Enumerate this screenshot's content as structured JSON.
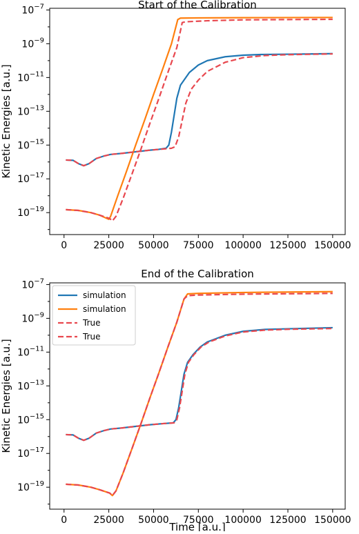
{
  "chart_data": [
    {
      "type": "line",
      "title": "Start of the Calibration",
      "xlabel": "",
      "ylabel": "Kinetic Energies [a.u.]",
      "xlim": [
        -8000,
        157000
      ],
      "ylim_log10": [
        -20.3,
        -6.9
      ],
      "y_scale": "log",
      "x_ticks": [
        0,
        25000,
        50000,
        75000,
        100000,
        125000,
        150000
      ],
      "x_tick_labels": [
        "0",
        "25000",
        "50000",
        "75000",
        "100000",
        "125000",
        "150000"
      ],
      "y_ticks_log10": [
        -19,
        -17,
        -15,
        -13,
        -11,
        -9,
        -7
      ],
      "y_tick_labels": [
        {
          "base": "10",
          "exp": "−19"
        },
        {
          "base": "10",
          "exp": "−17"
        },
        {
          "base": "10",
          "exp": "−15"
        },
        {
          "base": "10",
          "exp": "−13"
        },
        {
          "base": "10",
          "exp": "−11"
        },
        {
          "base": "10",
          "exp": "−9"
        },
        {
          "base": "10",
          "exp": "−7"
        }
      ],
      "grid": false,
      "legend": null,
      "series": [
        {
          "color": "#1f77b4",
          "style": "solid",
          "points": [
            [
              1000,
              1.3e-16
            ],
            [
              5000,
              1.25e-16
            ],
            [
              8000,
              8e-17
            ],
            [
              11000,
              6e-17
            ],
            [
              14000,
              8e-17
            ],
            [
              18000,
              1.6e-16
            ],
            [
              22000,
              2.2e-16
            ],
            [
              26000,
              2.8e-16
            ],
            [
              32000,
              3.2e-16
            ],
            [
              40000,
              4e-16
            ],
            [
              48000,
              5e-16
            ],
            [
              53000,
              5.6e-16
            ],
            [
              57000,
              6.5e-16
            ],
            [
              58500,
              1e-15
            ],
            [
              60000,
              6e-15
            ],
            [
              61500,
              6e-14
            ],
            [
              63000,
              6e-13
            ],
            [
              65000,
              3.5e-12
            ],
            [
              70000,
              2e-11
            ],
            [
              75000,
              5.5e-11
            ],
            [
              80000,
              1e-10
            ],
            [
              90000,
              1.7e-10
            ],
            [
              100000,
              2.1e-10
            ],
            [
              110000,
              2.3e-10
            ],
            [
              125000,
              2.4e-10
            ],
            [
              140000,
              2.5e-10
            ],
            [
              150000,
              2.6e-10
            ]
          ]
        },
        {
          "color": "#ff7f0e",
          "style": "solid",
          "points": [
            [
              1000,
              1.5e-19
            ],
            [
              8000,
              1.35e-19
            ],
            [
              15000,
              1e-19
            ],
            [
              20000,
              7e-20
            ],
            [
              25000,
              4e-20
            ],
            [
              26000,
              6e-20
            ],
            [
              30000,
              1e-18
            ],
            [
              35000,
              3e-17
            ],
            [
              40000,
              1e-15
            ],
            [
              45000,
              3e-14
            ],
            [
              50000,
              1e-12
            ],
            [
              55000,
              3e-11
            ],
            [
              60000,
              1e-09
            ],
            [
              63500,
              2.7e-08
            ],
            [
              65000,
              3.3e-08
            ],
            [
              75000,
              3.4e-08
            ],
            [
              100000,
              3.5e-08
            ],
            [
              150000,
              3.6e-08
            ]
          ]
        },
        {
          "color": "#e8474e",
          "style": "dashed",
          "points": [
            [
              1000,
              1.3e-16
            ],
            [
              5000,
              1.25e-16
            ],
            [
              8000,
              8e-17
            ],
            [
              11000,
              6e-17
            ],
            [
              14000,
              8e-17
            ],
            [
              18000,
              1.6e-16
            ],
            [
              22000,
              2.2e-16
            ],
            [
              26000,
              2.8e-16
            ],
            [
              32000,
              3.2e-16
            ],
            [
              40000,
              4e-16
            ],
            [
              48000,
              5e-16
            ],
            [
              55000,
              5.8e-16
            ],
            [
              60000,
              6.5e-16
            ],
            [
              62000,
              8e-16
            ],
            [
              64000,
              3e-15
            ],
            [
              66000,
              3e-14
            ],
            [
              68000,
              3e-13
            ],
            [
              71000,
              2e-12
            ],
            [
              75000,
              7e-12
            ],
            [
              80000,
              2.3e-11
            ],
            [
              90000,
              8e-11
            ],
            [
              100000,
              1.5e-10
            ],
            [
              112000,
              2e-10
            ],
            [
              125000,
              2.25e-10
            ],
            [
              140000,
              2.4e-10
            ],
            [
              150000,
              2.5e-10
            ]
          ]
        },
        {
          "color": "#e8474e",
          "style": "dashed",
          "points": [
            [
              1000,
              1.5e-19
            ],
            [
              8000,
              1.35e-19
            ],
            [
              15000,
              1e-19
            ],
            [
              20000,
              7e-20
            ],
            [
              25500,
              4.5e-20
            ],
            [
              27000,
              3.2e-20
            ],
            [
              29000,
              6e-20
            ],
            [
              33000,
              7e-19
            ],
            [
              38000,
              2e-17
            ],
            [
              43000,
              6e-16
            ],
            [
              48000,
              2e-14
            ],
            [
              53000,
              6e-13
            ],
            [
              58000,
              2e-11
            ],
            [
              63000,
              6e-10
            ],
            [
              66000,
              1.8e-08
            ],
            [
              68000,
              2e-08
            ],
            [
              80000,
              2.3e-08
            ],
            [
              100000,
              2.6e-08
            ],
            [
              150000,
              2.8e-08
            ]
          ]
        }
      ]
    },
    {
      "type": "line",
      "title": "End of the Calibration",
      "xlabel": "Time [a.u.]",
      "ylabel": "Kinetic Energies [a.u.]",
      "xlim": [
        -8000,
        157000
      ],
      "ylim_log10": [
        -20.3,
        -6.9
      ],
      "y_scale": "log",
      "x_ticks": [
        0,
        25000,
        50000,
        75000,
        100000,
        125000,
        150000
      ],
      "x_tick_labels": [
        "0",
        "25000",
        "50000",
        "75000",
        "100000",
        "125000",
        "150000"
      ],
      "y_ticks_log10": [
        -19,
        -17,
        -15,
        -13,
        -11,
        -9,
        -7
      ],
      "y_tick_labels": [
        {
          "base": "10",
          "exp": "−19"
        },
        {
          "base": "10",
          "exp": "−17"
        },
        {
          "base": "10",
          "exp": "−15"
        },
        {
          "base": "10",
          "exp": "−13"
        },
        {
          "base": "10",
          "exp": "−11"
        },
        {
          "base": "10",
          "exp": "−9"
        },
        {
          "base": "10",
          "exp": "−7"
        }
      ],
      "grid": false,
      "legend": "top-left",
      "series": [
        {
          "name": "simulation",
          "color": "#1f77b4",
          "style": "solid",
          "points": [
            [
              1000,
              1.3e-16
            ],
            [
              5000,
              1.25e-16
            ],
            [
              8000,
              8e-17
            ],
            [
              11000,
              6e-17
            ],
            [
              14000,
              8e-17
            ],
            [
              18000,
              1.6e-16
            ],
            [
              22000,
              2.2e-16
            ],
            [
              26000,
              2.8e-16
            ],
            [
              32000,
              3.2e-16
            ],
            [
              40000,
              4e-16
            ],
            [
              48000,
              5e-16
            ],
            [
              55000,
              5.8e-16
            ],
            [
              61000,
              6.5e-16
            ],
            [
              62500,
              1e-15
            ],
            [
              64000,
              5e-15
            ],
            [
              65500,
              5e-14
            ],
            [
              67000,
              5e-13
            ],
            [
              69000,
              2.5e-12
            ],
            [
              72000,
              7e-12
            ],
            [
              76000,
              2e-11
            ],
            [
              80000,
              4e-11
            ],
            [
              90000,
              1e-10
            ],
            [
              100000,
              1.7e-10
            ],
            [
              112000,
              2.2e-10
            ],
            [
              125000,
              2.4e-10
            ],
            [
              150000,
              2.8e-10
            ]
          ]
        },
        {
          "name": "simulation",
          "color": "#ff7f0e",
          "style": "solid",
          "points": [
            [
              1000,
              1.5e-19
            ],
            [
              8000,
              1.35e-19
            ],
            [
              15000,
              1e-19
            ],
            [
              20000,
              7e-20
            ],
            [
              25500,
              4.5e-20
            ],
            [
              27000,
              3.2e-20
            ],
            [
              29000,
              6e-20
            ],
            [
              33000,
              7e-19
            ],
            [
              38000,
              2e-17
            ],
            [
              43000,
              6e-16
            ],
            [
              48000,
              2e-14
            ],
            [
              53000,
              6e-13
            ],
            [
              58000,
              2e-11
            ],
            [
              63000,
              6e-10
            ],
            [
              67000,
              1.4e-08
            ],
            [
              69000,
              2.8e-08
            ],
            [
              75000,
              3e-08
            ],
            [
              100000,
              3.4e-08
            ],
            [
              150000,
              3.8e-08
            ]
          ]
        },
        {
          "name": "True",
          "color": "#e8474e",
          "style": "dashed",
          "points": [
            [
              1000,
              1.3e-16
            ],
            [
              5000,
              1.25e-16
            ],
            [
              8000,
              8e-17
            ],
            [
              11000,
              6e-17
            ],
            [
              14000,
              8e-17
            ],
            [
              18000,
              1.6e-16
            ],
            [
              22000,
              2.2e-16
            ],
            [
              26000,
              2.8e-16
            ],
            [
              32000,
              3.2e-16
            ],
            [
              40000,
              4e-16
            ],
            [
              48000,
              5e-16
            ],
            [
              55000,
              5.8e-16
            ],
            [
              61500,
              6.5e-16
            ],
            [
              63000,
              1e-15
            ],
            [
              64500,
              5e-15
            ],
            [
              66000,
              5e-14
            ],
            [
              67500,
              5e-13
            ],
            [
              69500,
              2.5e-12
            ],
            [
              72500,
              7e-12
            ],
            [
              76500,
              2e-11
            ],
            [
              81000,
              4e-11
            ],
            [
              90000,
              9e-11
            ],
            [
              100000,
              1.55e-10
            ],
            [
              112000,
              2e-10
            ],
            [
              125000,
              2.25e-10
            ],
            [
              150000,
              2.5e-10
            ]
          ]
        },
        {
          "name": "True",
          "color": "#e8474e",
          "style": "dashed",
          "points": [
            [
              1000,
              1.5e-19
            ],
            [
              8000,
              1.35e-19
            ],
            [
              15000,
              1e-19
            ],
            [
              20000,
              7e-20
            ],
            [
              25500,
              4.5e-20
            ],
            [
              27000,
              3.2e-20
            ],
            [
              29000,
              6e-20
            ],
            [
              33000,
              7e-19
            ],
            [
              38000,
              2e-17
            ],
            [
              43000,
              6e-16
            ],
            [
              48000,
              2e-14
            ],
            [
              53000,
              6e-13
            ],
            [
              58000,
              2e-11
            ],
            [
              63000,
              6e-10
            ],
            [
              67000,
              1.4e-08
            ],
            [
              69000,
              2.2e-08
            ],
            [
              75000,
              2.4e-08
            ],
            [
              100000,
              2.7e-08
            ],
            [
              150000,
              3e-08
            ]
          ]
        }
      ]
    }
  ]
}
